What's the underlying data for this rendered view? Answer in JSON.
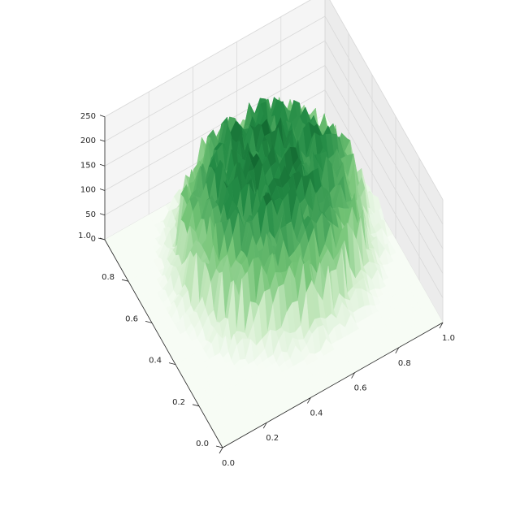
{
  "chart_data": {
    "type": "surface3d",
    "colormap": "Greens",
    "colormap_stops": [
      "#f7fcf5",
      "#c7e9c0",
      "#74c476",
      "#238b45",
      "#00441b"
    ],
    "xlim": [
      0.0,
      1.0
    ],
    "ylim": [
      0.0,
      1.0
    ],
    "zlim": [
      0,
      250
    ],
    "x_ticks": [
      {
        "value": 0.0,
        "label": "0.0"
      },
      {
        "value": 0.2,
        "label": "0.2"
      },
      {
        "value": 0.4,
        "label": "0.4"
      },
      {
        "value": 0.6,
        "label": "0.6"
      },
      {
        "value": 0.8,
        "label": "0.8"
      },
      {
        "value": 1.0,
        "label": "1.0"
      }
    ],
    "y_ticks": [
      {
        "value": 0.0,
        "label": "0.0"
      },
      {
        "value": 0.2,
        "label": "0.2"
      },
      {
        "value": 0.4,
        "label": "0.4"
      },
      {
        "value": 0.6,
        "label": "0.6"
      },
      {
        "value": 0.8,
        "label": "0.8"
      },
      {
        "value": 1.0,
        "label": "1.0"
      }
    ],
    "z_ticks": [
      {
        "value": 0,
        "label": "0"
      },
      {
        "value": 50,
        "label": "50"
      },
      {
        "value": 100,
        "label": "100"
      },
      {
        "value": 150,
        "label": "150"
      },
      {
        "value": 200,
        "label": "200"
      },
      {
        "value": 250,
        "label": "250"
      }
    ],
    "grid": true,
    "surface": {
      "grid_size": 40,
      "blob_center": [
        0.55,
        0.6
      ],
      "blob_radius": [
        0.4,
        0.4
      ],
      "peak_height": 230,
      "noise_amplitude": 70
    }
  }
}
